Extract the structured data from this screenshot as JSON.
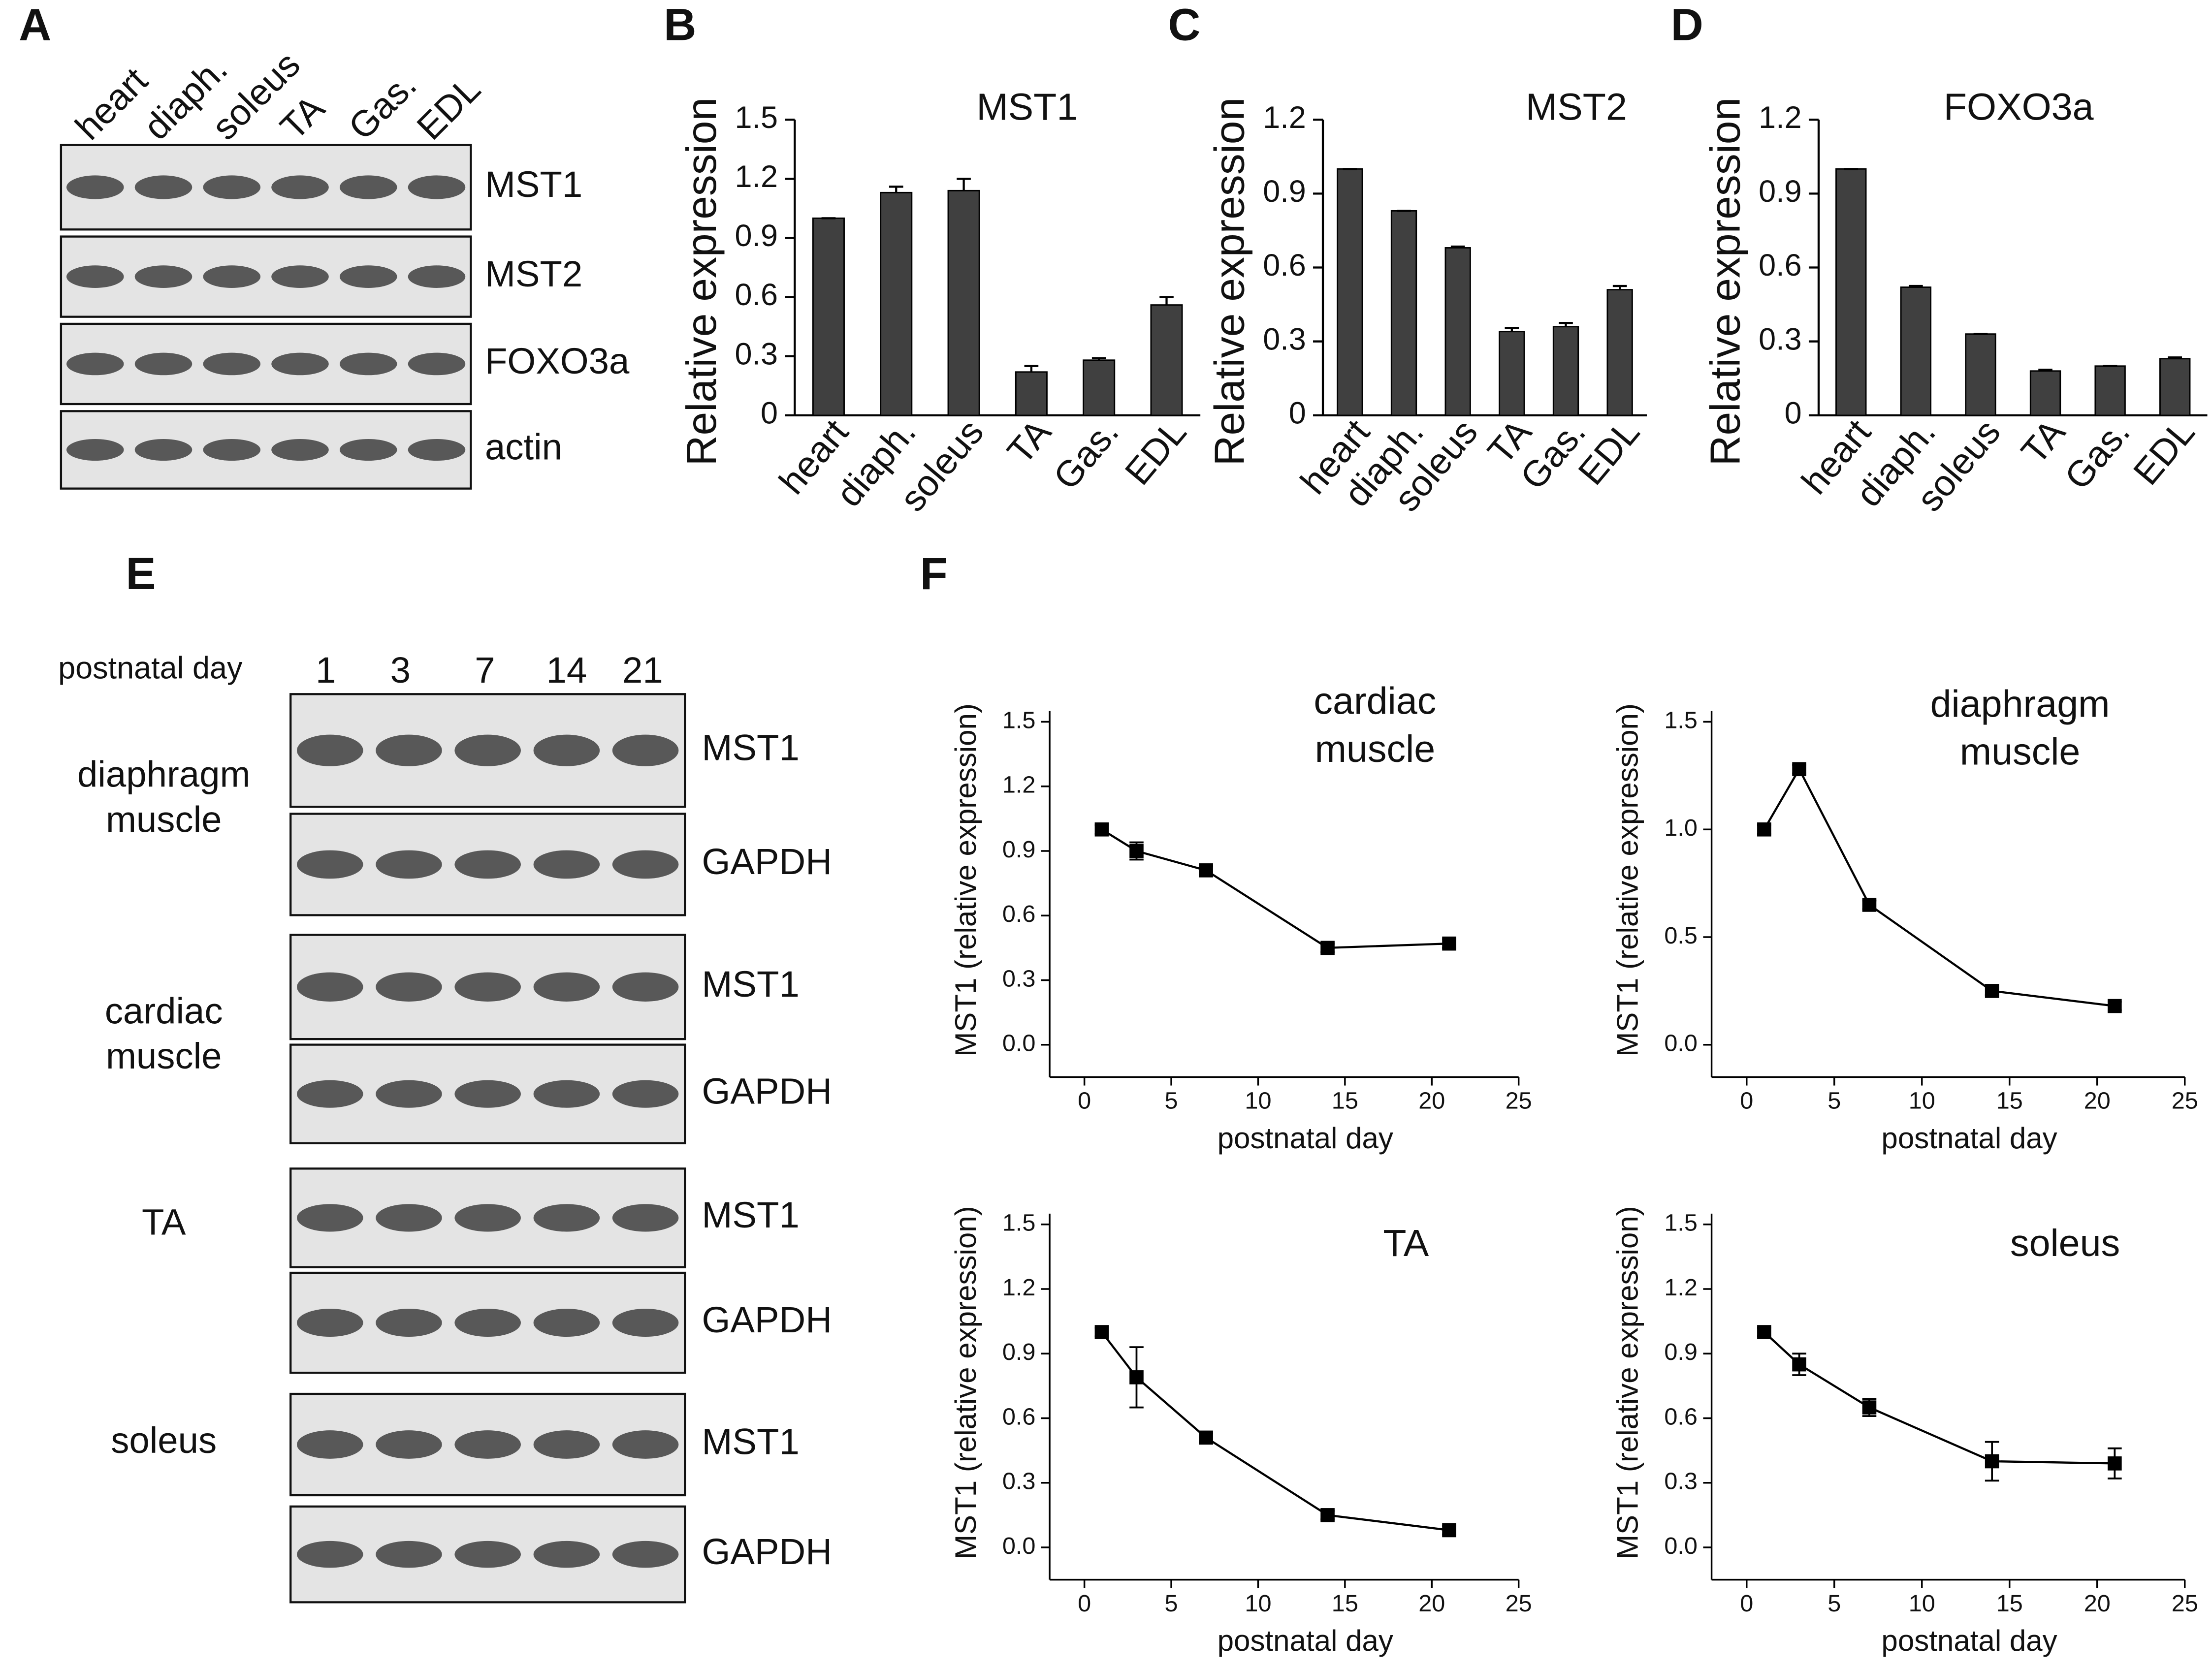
{
  "panel_labels": [
    "A",
    "B",
    "C",
    "D",
    "E",
    "F"
  ],
  "blot_a": {
    "lanes": [
      "heart",
      "diaph.",
      "soleus",
      "TA",
      "Gas.",
      "EDL"
    ],
    "proteins": [
      "MST1",
      "MST2",
      "FOXO3a",
      "actin"
    ]
  },
  "blot_e": {
    "header": "postnatal day",
    "days": [
      "1",
      "3",
      "7",
      "14",
      "21"
    ],
    "groups": [
      {
        "tissue": [
          "diaphragm",
          "muscle"
        ],
        "rows": [
          "MST1",
          "GAPDH"
        ]
      },
      {
        "tissue": [
          "cardiac",
          "muscle"
        ],
        "rows": [
          "MST1",
          "GAPDH"
        ]
      },
      {
        "tissue": [
          "TA"
        ],
        "rows": [
          "MST1",
          "GAPDH"
        ]
      },
      {
        "tissue": [
          "soleus"
        ],
        "rows": [
          "MST1",
          "GAPDH"
        ]
      }
    ]
  },
  "chart_data": [
    {
      "type": "bar",
      "title": "MST1",
      "ylabel": "Relative expression",
      "color": "#404040",
      "categories": [
        "heart",
        "diaph.",
        "soleus",
        "TA",
        "Gas.",
        "EDL"
      ],
      "values": [
        1.0,
        1.13,
        1.14,
        0.22,
        0.28,
        0.56
      ],
      "errors": [
        0,
        0.03,
        0.06,
        0.03,
        0.01,
        0.04
      ],
      "ylim": [
        0,
        1.5
      ],
      "yticks": [
        0,
        0.3,
        0.6,
        0.9,
        1.2,
        1.5
      ]
    },
    {
      "type": "bar",
      "title": "MST2",
      "ylabel": "Relative expression",
      "color": "#404040",
      "categories": [
        "heart",
        "diaph.",
        "soleus",
        "TA",
        "Gas.",
        "EDL"
      ],
      "values": [
        1.0,
        0.83,
        0.68,
        0.34,
        0.36,
        0.51
      ],
      "errors": [
        0,
        0,
        0.005,
        0.015,
        0.015,
        0.015
      ],
      "ylim": [
        0,
        1.2
      ],
      "yticks": [
        0,
        0.3,
        0.6,
        0.9,
        1.2
      ]
    },
    {
      "type": "bar",
      "title": "FOXO3a",
      "ylabel": "Relative expression",
      "color": "#404040",
      "categories": [
        "heart",
        "diaph.",
        "soleus",
        "TA",
        "Gas.",
        "EDL"
      ],
      "values": [
        1.0,
        0.52,
        0.33,
        0.18,
        0.2,
        0.23
      ],
      "errors": [
        0,
        0.005,
        0,
        0.005,
        0,
        0.005
      ],
      "ylim": [
        0,
        1.2
      ],
      "yticks": [
        0,
        0.3,
        0.6,
        0.9,
        1.2
      ]
    },
    {
      "type": "line",
      "title": [
        "cardiac",
        "muscle"
      ],
      "xlabel": "postnatal day",
      "ylabel": "MST1  (relative expression)",
      "color": "#000000",
      "x": [
        1,
        3,
        7,
        14,
        21
      ],
      "values": [
        1.0,
        0.9,
        0.81,
        0.45,
        0.47
      ],
      "errors": [
        0.02,
        0.04,
        0.02,
        0.02,
        0.02
      ],
      "xlim": [
        -2,
        25
      ],
      "xticks": [
        0,
        5,
        10,
        15,
        20,
        25
      ],
      "ylim": [
        -0.15,
        1.55
      ],
      "yticks": [
        {
          "value": 0,
          "label": "0.0"
        },
        0.3,
        0.6,
        0.9,
        1.2,
        1.5
      ]
    },
    {
      "type": "line",
      "title": [
        "diaphragm",
        "muscle"
      ],
      "xlabel": "postnatal day",
      "ylabel": "MST1  (relative expression)",
      "color": "#000000",
      "x": [
        1,
        3,
        7,
        14,
        21
      ],
      "values": [
        1.0,
        1.28,
        0.65,
        0.25,
        0.18
      ],
      "errors": [
        0.02,
        0.02,
        0.02,
        0.02,
        0.02
      ],
      "xlim": [
        -2,
        25
      ],
      "xticks": [
        0,
        5,
        10,
        15,
        20,
        25
      ],
      "ylim": [
        -0.15,
        1.55
      ],
      "yticks": [
        {
          "value": 0,
          "label": "0.0"
        },
        0.5,
        {
          "value": 1,
          "label": "1.0"
        },
        1.5
      ]
    },
    {
      "type": "line",
      "title": [
        "TA"
      ],
      "xlabel": "postnatal day",
      "ylabel": "MST1  (relative expression)",
      "color": "#000000",
      "x": [
        1,
        3,
        7,
        14,
        21
      ],
      "values": [
        1.0,
        0.79,
        0.51,
        0.15,
        0.08
      ],
      "errors": [
        0.02,
        0.14,
        0.02,
        0.02,
        0.02
      ],
      "xlim": [
        -2,
        25
      ],
      "xticks": [
        0,
        5,
        10,
        15,
        20,
        25
      ],
      "ylim": [
        -0.15,
        1.55
      ],
      "yticks": [
        {
          "value": 0,
          "label": "0.0"
        },
        0.3,
        0.6,
        0.9,
        1.2,
        1.5
      ]
    },
    {
      "type": "line",
      "title": [
        "soleus"
      ],
      "xlabel": "postnatal day",
      "ylabel": "MST1  (relative expression)",
      "color": "#000000",
      "x": [
        1,
        3,
        7,
        14,
        21
      ],
      "values": [
        1.0,
        0.85,
        0.65,
        0.4,
        0.39
      ],
      "errors": [
        0.02,
        0.05,
        0.04,
        0.09,
        0.07
      ],
      "xlim": [
        -2,
        25
      ],
      "xticks": [
        0,
        5,
        10,
        15,
        20,
        25
      ],
      "ylim": [
        -0.15,
        1.55
      ],
      "yticks": [
        {
          "value": 0,
          "label": "0.0"
        },
        0.3,
        0.6,
        0.9,
        1.2,
        1.5
      ]
    }
  ]
}
